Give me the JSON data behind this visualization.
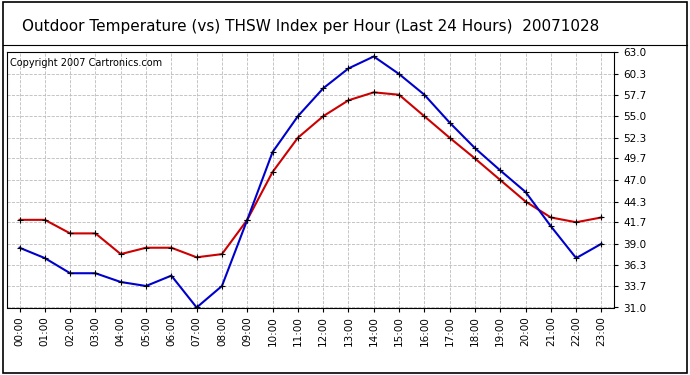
{
  "title": "Outdoor Temperature (vs) THSW Index per Hour (Last 24 Hours)  20071028",
  "copyright": "Copyright 2007 Cartronics.com",
  "hours": [
    "00:00",
    "01:00",
    "02:00",
    "03:00",
    "04:00",
    "05:00",
    "06:00",
    "07:00",
    "08:00",
    "09:00",
    "10:00",
    "11:00",
    "12:00",
    "13:00",
    "14:00",
    "15:00",
    "16:00",
    "17:00",
    "18:00",
    "19:00",
    "20:00",
    "21:00",
    "22:00",
    "23:00"
  ],
  "outdoor_temp": [
    38.5,
    37.2,
    35.3,
    35.3,
    34.2,
    33.7,
    35.0,
    31.0,
    33.7,
    42.0,
    50.5,
    55.0,
    58.5,
    61.0,
    62.5,
    60.3,
    57.7,
    54.2,
    51.0,
    48.2,
    45.5,
    41.2,
    37.2,
    39.0
  ],
  "thsw_index": [
    42.0,
    42.0,
    40.3,
    40.3,
    37.7,
    38.5,
    38.5,
    37.3,
    37.7,
    42.0,
    48.0,
    52.3,
    55.0,
    57.0,
    58.0,
    57.7,
    55.0,
    52.3,
    49.7,
    47.0,
    44.3,
    42.3,
    41.7,
    42.3
  ],
  "ylim": [
    31.0,
    63.0
  ],
  "yticks": [
    31.0,
    33.7,
    36.3,
    39.0,
    41.7,
    44.3,
    47.0,
    49.7,
    52.3,
    55.0,
    57.7,
    60.3,
    63.0
  ],
  "temp_color": "#0000cc",
  "thsw_color": "#cc0000",
  "bg_color": "#ffffff",
  "plot_bg": "#ffffff",
  "grid_color": "#bbbbbb",
  "title_color": "#000000",
  "title_fontsize": 11,
  "copyright_fontsize": 7,
  "tick_fontsize": 7.5,
  "marker_size": 4
}
